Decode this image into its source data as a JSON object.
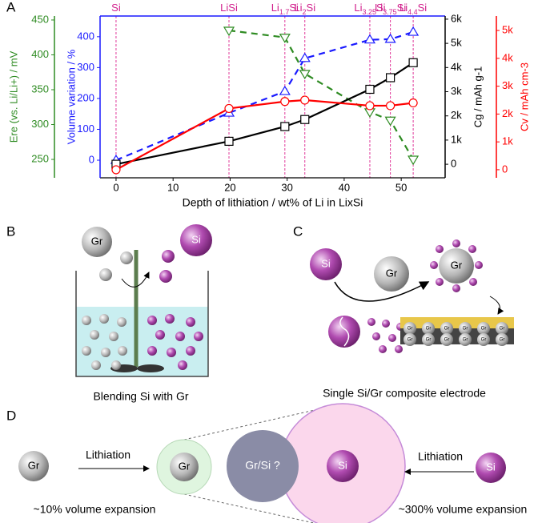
{
  "chart_data": {
    "type": "line",
    "xlabel": "Depth of lithiation / wt% of Li in LixSi",
    "x": [
      0,
      19.8,
      29.6,
      33.1,
      44.5,
      48.1,
      52.1
    ],
    "xlim": [
      -2.8,
      57.7
    ],
    "xticks": [
      0,
      10,
      20,
      30,
      40,
      50
    ],
    "phases": [
      {
        "value": 0,
        "label": "Si"
      },
      {
        "value": 19.8,
        "label": "LiSi"
      },
      {
        "value": 29.6,
        "label": "Li1.7Si"
      },
      {
        "value": 33.1,
        "label": "Li2Si"
      },
      {
        "value": 44.5,
        "label": "Li3.25Si"
      },
      {
        "value": 48.1,
        "label": "Li3.75Si"
      },
      {
        "value": 52.1,
        "label": "Li4.4Si"
      }
    ],
    "y_axes": [
      {
        "label": "Ere (vs. Li/Li+) / mV",
        "color": "#2e8b22",
        "lim": [
          223.6,
          455.7
        ],
        "ticks": [
          250,
          300,
          350,
          400,
          450
        ]
      },
      {
        "label": "Volume variation / %",
        "color": "#1a1aff",
        "lim": [
          -57,
          467
        ],
        "ticks": [
          0,
          100,
          200,
          300,
          400
        ]
      },
      {
        "label": "Cg / mAh g-1",
        "color": "#000000",
        "lim": [
          -560,
          6130
        ],
        "ticks": [
          0,
          {
            "value": 1000,
            "label": "1k"
          },
          {
            "value": 2000,
            "label": "2k"
          },
          {
            "value": 3000,
            "label": "3k"
          },
          {
            "value": 4000,
            "label": "4k"
          },
          {
            "value": 5000,
            "label": "5k"
          },
          {
            "value": 6000,
            "label": "6k"
          }
        ]
      },
      {
        "label": "Cv / mAh cm-3",
        "color": "#ff0000",
        "lim": [
          -290,
          5520
        ],
        "ticks": [
          0,
          {
            "value": 1000,
            "label": "1k"
          },
          {
            "value": 2000,
            "label": "2k"
          },
          {
            "value": 3000,
            "label": "3k"
          },
          {
            "value": 4000,
            "label": "4k"
          },
          {
            "value": 5000,
            "label": "5k"
          }
        ]
      }
    ],
    "series": [
      {
        "axis": 0,
        "color": "#2e8b22",
        "marker": "triangle-down",
        "dashed": true,
        "values": [
          null,
          435,
          425,
          373,
          318,
          306,
          250
        ]
      },
      {
        "axis": 1,
        "color": "#1a1aff",
        "marker": "triangle-up",
        "dashed": true,
        "values": [
          0,
          153,
          223,
          330,
          390,
          392,
          415
        ]
      },
      {
        "axis": 2,
        "color": "#000000",
        "marker": "square",
        "dashed": false,
        "values": [
          0,
          950,
          1560,
          1850,
          3100,
          3580,
          4200
        ]
      },
      {
        "axis": 3,
        "color": "#ff0000",
        "marker": "circle",
        "dashed": false,
        "values": [
          0,
          2200,
          2450,
          2500,
          2300,
          2300,
          2400
        ]
      }
    ]
  },
  "panel_labels": [
    "A",
    "B",
    "C",
    "D"
  ],
  "panel_b": {
    "gr": "Gr",
    "si": "Si",
    "caption": "Blending Si with Gr"
  },
  "panel_c": {
    "si": "Si",
    "gr": "Gr",
    "coated_gr": "Gr",
    "electrode_gr": "Gr",
    "caption": "Single Si/Gr composite electrode"
  },
  "panel_d": {
    "left_particle": "Gr",
    "left_arrow": "Lithiation",
    "expanded_gr": "Gr",
    "mixed": "Gr/Si ?",
    "expanded_si": "Si",
    "right_arrow": "Lithiation",
    "right_particle": "Si",
    "left_caption": "~10% volume expansion",
    "right_caption": "~300% volume expansion"
  }
}
